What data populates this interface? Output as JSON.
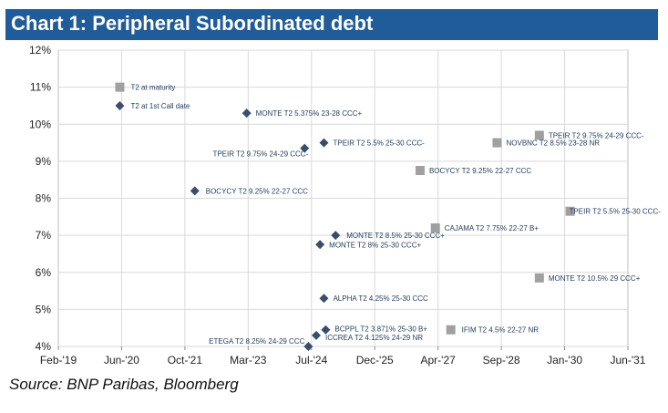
{
  "chart_data": {
    "type": "scatter",
    "title": "Chart 1: Peripheral Subordinated debt",
    "source": "Source: BNP Paribas, Bloomberg",
    "y_ticks": [
      "12%",
      "11%",
      "10%",
      "9%",
      "8%",
      "7%",
      "6%",
      "5%",
      "4%"
    ],
    "x_ticks": [
      "Feb-'19",
      "Jun-'20",
      "Oct-'21",
      "Mar-'23",
      "Jul-'24",
      "Dec-'25",
      "Apr-'27",
      "Sep-'28",
      "Jan-'30",
      "Jun-'31"
    ],
    "ylim": [
      4,
      12
    ],
    "xlim": [
      "2019-02-01",
      "2031-06-01"
    ],
    "grid": true,
    "series": [
      {
        "name": "T2 at 1st Call date",
        "marker": "diamond",
        "color": "#3a4e6b",
        "points": [
          {
            "x": "2022-01-15",
            "y": 8.2,
            "label": "BOCYCY T2 9.25% 22-27 CCC"
          },
          {
            "x": "2023-03-01",
            "y": 10.3,
            "label": "MONTE T2 5.375% 23-28 CCC+"
          },
          {
            "x": "2024-06-01",
            "y": 9.35,
            "label": "TPEIR T2 9.75% 24-29 CCC-"
          },
          {
            "x": "2024-07-01",
            "y": 4.0,
            "label": "ETEGA T2 8.25% 24-29 CCC"
          },
          {
            "x": "2024-09-01",
            "y": 4.3,
            "label": "ICCREA T2 4.125% 24-29 NR"
          },
          {
            "x": "2024-10-01",
            "y": 6.75,
            "label": "MONTE T2 8% 25-30 CCC+"
          },
          {
            "x": "2024-11-01",
            "y": 9.5,
            "label": "TPEIR T2 5.5% 25-30 CCC-"
          },
          {
            "x": "2024-11-01",
            "y": 5.3,
            "label": "ALPHA T2 4.25% 25-30 CCC"
          },
          {
            "x": "2024-11-15",
            "y": 4.45,
            "label": "BCPPL T2 3.871% 25-30 B+"
          },
          {
            "x": "2025-02-01",
            "y": 7.0,
            "label": "MONTE T2 8.5% 25-30 CCC+"
          }
        ]
      },
      {
        "name": "T2 at maturity",
        "marker": "square",
        "color": "#a0a0a0",
        "points": [
          {
            "x": "2026-12-01",
            "y": 8.75,
            "label": "BOCYCY T2 9.25% 22-27 CCC"
          },
          {
            "x": "2027-04-01",
            "y": 7.2,
            "label": "CAJAMA T2 7.75% 22-27 B+"
          },
          {
            "x": "2027-08-01",
            "y": 4.45,
            "label": "IFIM T2 4.5% 22-27 NR"
          },
          {
            "x": "2028-08-01",
            "y": 9.5,
            "label": "NOVBNC T2 8.5% 23-28 NR"
          },
          {
            "x": "2029-07-01",
            "y": 9.7,
            "label": "TPEIR T2 9.75% 24-29 CCC-"
          },
          {
            "x": "2029-07-01",
            "y": 5.85,
            "label": "MONTE T2 10.5% 29 CCC+"
          },
          {
            "x": "2030-03-01",
            "y": 7.65,
            "label": "TPEIR T2 5.5% 25-30 CCC-"
          }
        ]
      }
    ]
  }
}
